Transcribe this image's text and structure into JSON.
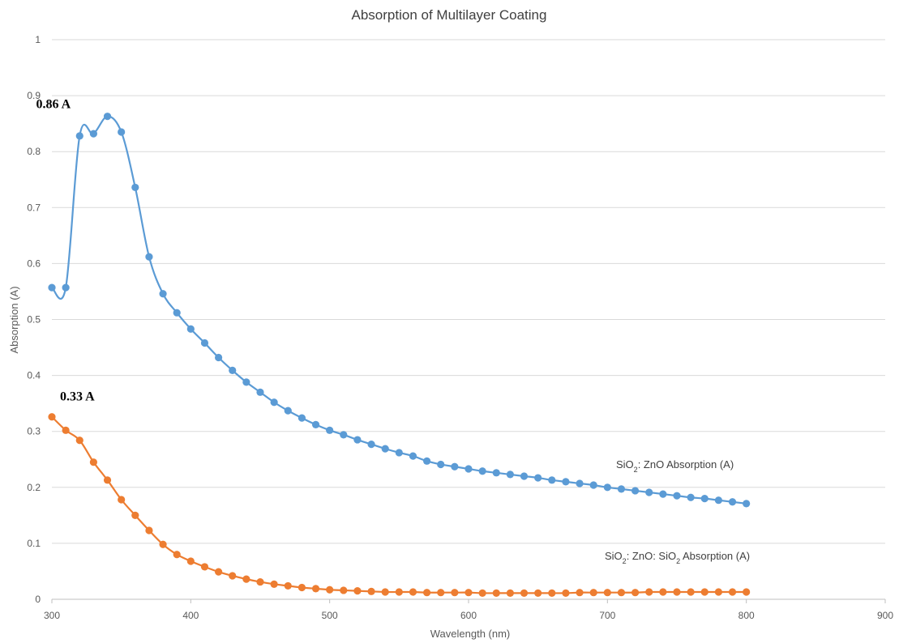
{
  "chart_data": {
    "type": "line",
    "title": "Absorption of Multilayer Coating",
    "xlabel": "Wavelength (nm)",
    "ylabel": "Absorption (A)",
    "xlim": [
      300,
      900
    ],
    "ylim": [
      0,
      1
    ],
    "xticks": [
      "300",
      "400",
      "500",
      "600",
      "700",
      "800",
      "900"
    ],
    "yticks": [
      "0",
      "0.1",
      "0.2",
      "0.3",
      "0.4",
      "0.5",
      "0.6",
      "0.7",
      "0.8",
      "0.9",
      "1"
    ],
    "grid": "horizontal",
    "x": [
      300,
      310,
      320,
      330,
      340,
      350,
      360,
      370,
      380,
      390,
      400,
      410,
      420,
      430,
      440,
      450,
      460,
      470,
      480,
      490,
      500,
      510,
      520,
      530,
      540,
      550,
      560,
      570,
      580,
      590,
      600,
      610,
      620,
      630,
      640,
      650,
      660,
      670,
      680,
      690,
      700,
      710,
      720,
      730,
      740,
      750,
      760,
      770,
      780,
      790,
      800
    ],
    "series": [
      {
        "label": {
          "prefix": "SiO",
          "sub": "2",
          "suffix": ": ZnO Absorption (A)"
        },
        "color": "#5b9bd5",
        "values": [
          0.557,
          0.557,
          0.828,
          0.832,
          0.863,
          0.835,
          0.736,
          0.612,
          0.546,
          0.512,
          0.483,
          0.458,
          0.432,
          0.409,
          0.388,
          0.37,
          0.352,
          0.337,
          0.324,
          0.312,
          0.302,
          0.294,
          0.285,
          0.277,
          0.269,
          0.262,
          0.256,
          0.247,
          0.241,
          0.237,
          0.233,
          0.229,
          0.226,
          0.223,
          0.22,
          0.217,
          0.213,
          0.21,
          0.207,
          0.204,
          0.2,
          0.197,
          0.194,
          0.191,
          0.188,
          0.185,
          0.182,
          0.18,
          0.177,
          0.174,
          0.171
        ]
      },
      {
        "label": {
          "prefix": "SiO",
          "sub": "2",
          "suffix": ": ZnO: SiO",
          "sub2": "2",
          "suffix2": " Absorption (A)"
        },
        "color": "#ed7d31",
        "values": [
          0.326,
          0.302,
          0.284,
          0.245,
          0.213,
          0.178,
          0.15,
          0.123,
          0.098,
          0.08,
          0.068,
          0.058,
          0.049,
          0.042,
          0.036,
          0.031,
          0.027,
          0.024,
          0.021,
          0.019,
          0.017,
          0.016,
          0.015,
          0.014,
          0.013,
          0.013,
          0.013,
          0.012,
          0.012,
          0.012,
          0.012,
          0.011,
          0.011,
          0.011,
          0.011,
          0.011,
          0.011,
          0.011,
          0.012,
          0.012,
          0.012,
          0.012,
          0.012,
          0.013,
          0.013,
          0.013,
          0.013,
          0.013,
          0.013,
          0.013,
          0.013
        ]
      }
    ],
    "annotations": [
      {
        "text": "0.86 A",
        "x": 340,
        "y": 0.863
      },
      {
        "text": "0.33 A",
        "x": 300,
        "y": 0.326
      }
    ]
  }
}
